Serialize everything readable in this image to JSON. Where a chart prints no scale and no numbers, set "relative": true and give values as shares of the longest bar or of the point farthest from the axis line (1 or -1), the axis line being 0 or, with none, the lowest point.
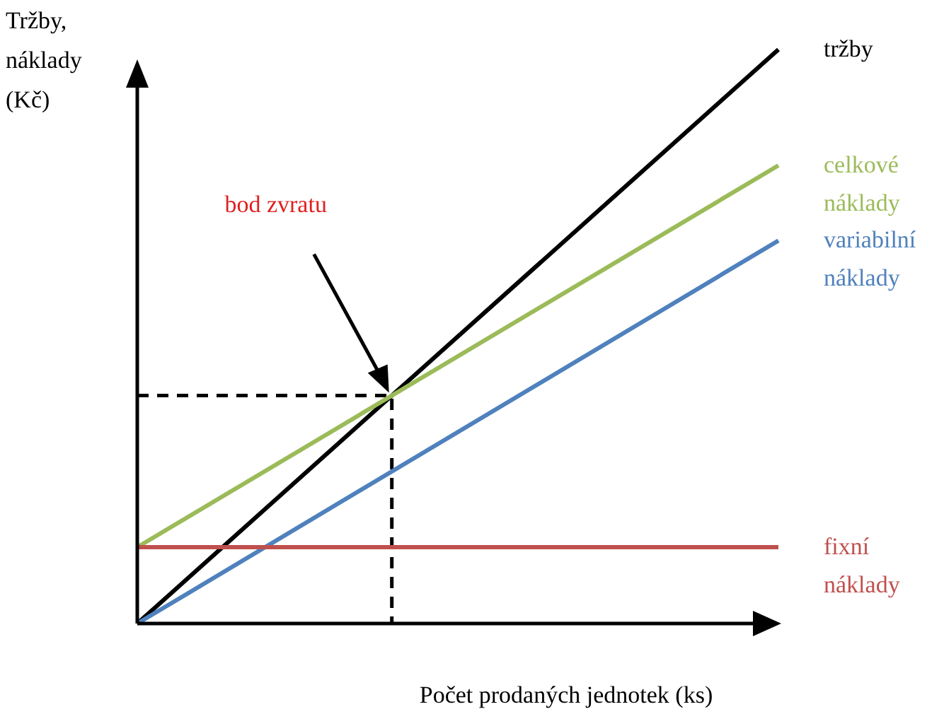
{
  "chart_data": {
    "type": "line",
    "relative": true,
    "categories": [
      null,
      null
    ],
    "marker": "none",
    "xlabel": "Počet prodaných jednotek (ks)",
    "ylabel": "Tržby, náklady (Kč)",
    "series": [
      {
        "name": "tržby",
        "color": "#000000",
        "values": [
          0,
          1
        ]
      },
      {
        "name": "celkové náklady",
        "color": "#9bbb59",
        "values": [
          0.133,
          0.798
        ]
      },
      {
        "name": "variabilní náklady",
        "color": "#4f81bd",
        "values": [
          0,
          0.667
        ]
      },
      {
        "name": "fixní náklady",
        "color": "#c0504d",
        "values": [
          0.133,
          0.133
        ]
      }
    ],
    "annotations": [
      "bod zvratu"
    ]
  }
}
